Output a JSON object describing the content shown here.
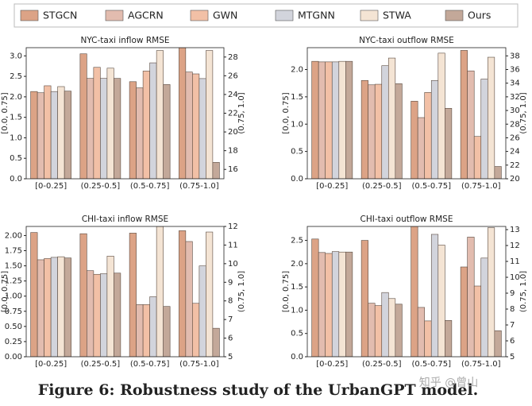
{
  "chart_data": [
    {
      "type": "bar",
      "title": "NYC-taxi inflow RMSE",
      "ylabel": "[0.0, 0.75]",
      "y2label": "(0.75, 1.0]",
      "categories": [
        "[0-0.25]",
        "(0.25-0.5]",
        "(0.5-0.75]",
        "(0.75-1.0]"
      ],
      "y2_groups": [
        3
      ],
      "ylim": [
        0,
        3.2
      ],
      "yticks": [
        {
          "value": 0,
          "label": "0.0"
        },
        0.5,
        {
          "value": 1,
          "label": "1.0"
        },
        1.5,
        {
          "value": 2,
          "label": "2.0"
        },
        2.5,
        {
          "value": 3,
          "label": "3.0"
        }
      ],
      "y2lim": [
        15,
        29
      ],
      "y2ticks": [
        16,
        18,
        20,
        22,
        24,
        26,
        28
      ],
      "series": [
        {
          "name": "STGCN",
          "color": "#dca386",
          "values": [
            2.13,
            3.05,
            2.37,
            29
          ]
        },
        {
          "name": "AGCRN",
          "color": "#e2bcaf",
          "values": [
            2.1,
            2.45,
            2.22,
            26.4
          ]
        },
        {
          "name": "GWN",
          "color": "#f2c0a6",
          "values": [
            2.27,
            2.72,
            2.63,
            26.2
          ]
        },
        {
          "name": "MTGNN",
          "color": "#d2d4dc",
          "values": [
            2.13,
            2.45,
            2.83,
            25.7
          ]
        },
        {
          "name": "STWA",
          "color": "#f4e4d4",
          "values": [
            2.25,
            2.7,
            3.13,
            28.7
          ]
        },
        {
          "name": "Ours",
          "color": "#c3a899",
          "values": [
            2.14,
            2.45,
            2.3,
            16.75
          ]
        }
      ]
    },
    {
      "type": "bar",
      "title": "NYC-taxi outflow RMSE",
      "ylabel": "[0.0, 0.75]",
      "y2label": "(0.75, 1.0]",
      "categories": [
        "[0-0.25]",
        "(0.25-0.5]",
        "(0.5-0.75]",
        "(0.75-1.0]"
      ],
      "y2_groups": [
        3
      ],
      "ylim": [
        0,
        2.4
      ],
      "yticks": [
        {
          "value": 0,
          "label": "0.0"
        },
        0.5,
        {
          "value": 1,
          "label": "1.0"
        },
        1.5,
        {
          "value": 2,
          "label": "2.0"
        }
      ],
      "y2lim": [
        20,
        39.2
      ],
      "y2ticks": [
        20,
        22,
        24,
        26,
        28,
        30,
        32,
        34,
        36,
        38
      ],
      "series": [
        {
          "name": "STGCN",
          "color": "#dca386",
          "values": [
            2.15,
            1.8,
            1.42,
            38.8
          ]
        },
        {
          "name": "AGCRN",
          "color": "#e2bcaf",
          "values": [
            2.14,
            1.72,
            1.12,
            35.8
          ]
        },
        {
          "name": "GWN",
          "color": "#f2c0a6",
          "values": [
            2.14,
            1.73,
            1.58,
            26.2
          ]
        },
        {
          "name": "MTGNN",
          "color": "#d2d4dc",
          "values": [
            2.14,
            2.07,
            1.8,
            34.6
          ]
        },
        {
          "name": "STWA",
          "color": "#f4e4d4",
          "values": [
            2.15,
            2.21,
            2.3,
            37.8
          ]
        },
        {
          "name": "Ours",
          "color": "#c3a899",
          "values": [
            2.15,
            1.74,
            1.29,
            21.8
          ]
        }
      ]
    },
    {
      "type": "bar",
      "title": "CHI-taxi inflow RMSE",
      "ylabel": "[0.0, 0.75]",
      "y2label": "(0.75, 1.0]",
      "categories": [
        "[0-0.25]",
        "(0.25-0.5]",
        "(0.5-0.75]",
        "(0.75-1.0]"
      ],
      "y2_groups": [
        3
      ],
      "ylim": [
        0,
        2.15
      ],
      "yticks": [
        {
          "value": 0,
          "label": "0.00"
        },
        0.25,
        {
          "value": 0.5,
          "label": "0.50"
        },
        0.75,
        {
          "value": 1,
          "label": "1.00"
        },
        1.25,
        {
          "value": 1.5,
          "label": "1.50"
        },
        1.75,
        {
          "value": 2,
          "label": "2.00"
        }
      ],
      "y2lim": [
        5,
        12
      ],
      "y2ticks": [
        5,
        6,
        7,
        8,
        9,
        10,
        11,
        12
      ],
      "series": [
        {
          "name": "STGCN",
          "color": "#dca386",
          "values": [
            2.05,
            2.03,
            2.04,
            11.77
          ]
        },
        {
          "name": "AGCRN",
          "color": "#e2bcaf",
          "values": [
            1.6,
            1.42,
            0.86,
            11.19
          ]
        },
        {
          "name": "GWN",
          "color": "#f2c0a6",
          "values": [
            1.62,
            1.36,
            0.86,
            7.87
          ]
        },
        {
          "name": "MTGNN",
          "color": "#d2d4dc",
          "values": [
            1.64,
            1.37,
            0.99,
            9.88
          ]
        },
        {
          "name": "STWA",
          "color": "#f4e4d4",
          "values": [
            1.65,
            1.66,
            2.15,
            11.7
          ]
        },
        {
          "name": "Ours",
          "color": "#c3a899",
          "values": [
            1.63,
            1.38,
            0.83,
            6.53
          ]
        }
      ]
    },
    {
      "type": "bar",
      "title": "CHI-taxi outflow RMSE",
      "ylabel": "[0.0, 0.75]",
      "y2label": "(0.75, 1.0]",
      "categories": [
        "[0-0.25]",
        "(0.25-0.5]",
        "(0.5-0.75]",
        "(0.75-1.0]"
      ],
      "y2_groups": [
        3
      ],
      "ylim": [
        0,
        2.8
      ],
      "yticks": [
        {
          "value": 0,
          "label": "0.0"
        },
        0.5,
        {
          "value": 1,
          "label": "1.0"
        },
        1.5,
        {
          "value": 2,
          "label": "2.0"
        },
        2.5
      ],
      "y2lim": [
        5,
        13.2
      ],
      "y2ticks": [
        5,
        6,
        7,
        8,
        9,
        10,
        11,
        12,
        13
      ],
      "series": [
        {
          "name": "STGCN",
          "color": "#dca386",
          "values": [
            2.53,
            2.5,
            2.8,
            10.65
          ]
        },
        {
          "name": "AGCRN",
          "color": "#e2bcaf",
          "values": [
            2.24,
            1.15,
            1.06,
            12.53
          ]
        },
        {
          "name": "GWN",
          "color": "#f2c0a6",
          "values": [
            2.22,
            1.1,
            0.77,
            9.45
          ]
        },
        {
          "name": "MTGNN",
          "color": "#d2d4dc",
          "values": [
            2.26,
            1.38,
            2.63,
            11.21
          ]
        },
        {
          "name": "STWA",
          "color": "#f4e4d4",
          "values": [
            2.25,
            1.25,
            2.4,
            13.12
          ]
        },
        {
          "name": "Ours",
          "color": "#c3a899",
          "values": [
            2.25,
            1.13,
            0.78,
            6.64
          ]
        }
      ]
    }
  ],
  "caption": "Figure 6: Robustness study of the UrbanGPT model.",
  "watermark": "知乎 @曾山"
}
